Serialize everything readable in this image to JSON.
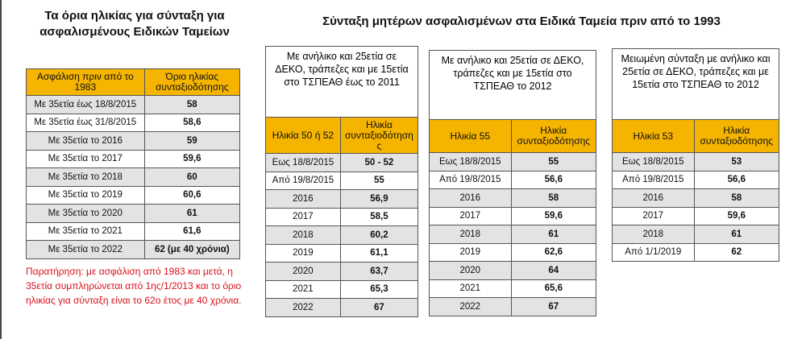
{
  "left": {
    "title": "Τα όρια ηλικίας για σύνταξη για ασφαλισμένους Ειδικών Ταμείων",
    "table": {
      "header": [
        "Ασφάλιση πριν από το 1983",
        "Όριο ηλικίας συνταξιοδότησης"
      ],
      "rows": [
        [
          "Με 35ετία έως 18/8/2015",
          "58"
        ],
        [
          "Με 35ετία έως 31/8/2015",
          "58,6"
        ],
        [
          "Με 35ετία το 2016",
          "59"
        ],
        [
          "Με 35ετία το 2017",
          "59,6"
        ],
        [
          "Με 35ετία το 2018",
          "60"
        ],
        [
          "Με 35ετία το 2019",
          "60,6"
        ],
        [
          "Με 35ετία το 2020",
          "61"
        ],
        [
          "Με 35ετία το 2021",
          "61,6"
        ],
        [
          "Με 35ετία το 2022",
          "62 (με 40 χρόνια)"
        ]
      ]
    },
    "note": "Παρατήρηση: με ασφάλιση από 1983 και μετά, η 35ετία συμπληρώνεται από 1ης/1/2013 και το όριο ηλικίας για σύνταξη είναι το 62ο έτος με 40 χρόνια."
  },
  "right": {
    "title": "Σύνταξη μητέρων ασφαλισμένων στα Ειδικά Ταμεία πριν από το 1993",
    "tables": [
      {
        "caption": "Με ανήλικο και 25ετία σε ΔΕΚΟ, τράπεζες και με 15ετία στο ΤΣΠΕΑΘ έως το 2011",
        "header": [
          "Ηλικία 50 ή 52",
          "Ηλικία συνταξιοδότησης"
        ],
        "rows": [
          [
            "Εως 18/8/2015",
            "50 - 52"
          ],
          [
            "Από 19/8/2015",
            "55"
          ],
          [
            "2016",
            "56,9"
          ],
          [
            "2017",
            "58,5"
          ],
          [
            "2018",
            "60,2"
          ],
          [
            "2019",
            "61,1"
          ],
          [
            "2020",
            "63,7"
          ],
          [
            "2021",
            "65,3"
          ],
          [
            "2022",
            "67"
          ]
        ]
      },
      {
        "caption": "Με ανήλικο και 25ετία σε ΔΕΚΟ, τράπεζες και με 15ετία στο ΤΣΠΕΑΘ το 2012",
        "header": [
          "Ηλικία 55",
          "Ηλικία συνταξιοδότησης"
        ],
        "rows": [
          [
            "Εως 18/8/2015",
            "55"
          ],
          [
            "Από 19/8/2015",
            "56,6"
          ],
          [
            "2016",
            "58"
          ],
          [
            "2017",
            "59,6"
          ],
          [
            "2018",
            "61"
          ],
          [
            "2019",
            "62,6"
          ],
          [
            "2020",
            "64"
          ],
          [
            "2021",
            "65,6"
          ],
          [
            "2022",
            "67"
          ]
        ]
      },
      {
        "caption": "Μειωμένη σύνταξη με ανήλικο και 25ετία σε ΔΕΚΟ, τράπεζες και με 15ετία στο ΤΣΠΕΑΘ το 2012",
        "header": [
          "Ηλικία 53",
          "Ηλικία συνταξιοδότησης"
        ],
        "rows": [
          [
            "Εως 18/8/2015",
            "53"
          ],
          [
            "Από 19/8/2015",
            "56,6"
          ],
          [
            "2016",
            "58"
          ],
          [
            "2017",
            "59,6"
          ],
          [
            "2018",
            "61"
          ],
          [
            "Από 1/1/2019",
            "62"
          ]
        ]
      }
    ]
  }
}
